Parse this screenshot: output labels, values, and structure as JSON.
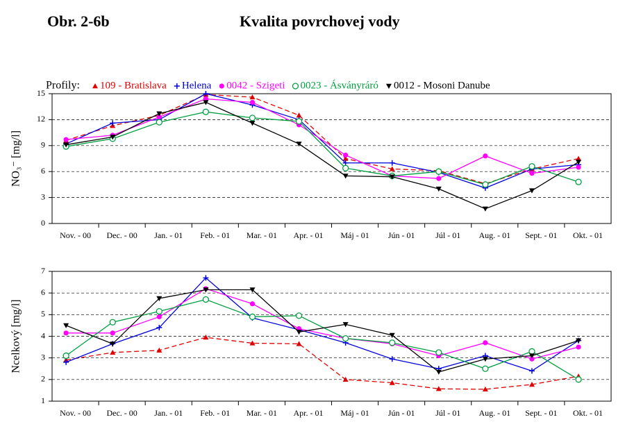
{
  "header": {
    "label": "Obr. 2-6b",
    "title": "Kvalita povrchovej vody"
  },
  "legend_label": "Profily:",
  "chart_data": [
    {
      "type": "line",
      "ylabel": "NO₃⁻ [mg/l]",
      "categories": [
        "Nov. - 00",
        "Dec. - 00",
        "Jan. - 01",
        "Feb. - 01",
        "Mar. - 01",
        "Apr. - 01",
        "Máj - 01",
        "Jún - 01",
        "Júl - 01",
        "Aug. - 01",
        "Sept. - 01",
        "Okt. - 01"
      ],
      "ylim": [
        0,
        15
      ],
      "yticks": [
        0,
        3,
        6,
        9,
        12,
        15
      ],
      "grid": true,
      "series": [
        {
          "name": "109 - Bratislava",
          "color": "#e00000",
          "marker": "triangle-up",
          "dashed": true,
          "values": [
            9.6,
            11.3,
            12.5,
            14.9,
            14.6,
            12.5,
            7.5,
            6.3,
            6.1,
            4.6,
            6.3,
            7.5
          ]
        },
        {
          "name": "Helena",
          "color": "#0000e0",
          "marker": "plus",
          "dashed": false,
          "values": [
            9.2,
            11.6,
            12.0,
            15.0,
            13.7,
            12.0,
            7.0,
            7.0,
            5.9,
            4.1,
            6.3,
            6.8
          ]
        },
        {
          "name": "0042 - Szigeti",
          "color": "#ff00ff",
          "marker": "circle-filled",
          "dashed": false,
          "values": [
            9.7,
            10.2,
            12.3,
            14.4,
            14.0,
            11.4,
            7.9,
            5.5,
            5.2,
            7.8,
            5.8,
            6.5
          ]
        },
        {
          "name": "0023 - Ásványráró",
          "color": "#00a040",
          "marker": "circle-open",
          "dashed": false,
          "values": [
            8.9,
            9.8,
            11.7,
            12.9,
            12.2,
            11.8,
            6.4,
            5.5,
            6.0,
            4.5,
            6.6,
            4.8
          ]
        },
        {
          "name": "0012 - Mosoni Danube",
          "color": "#000000",
          "marker": "triangle-down",
          "dashed": false,
          "values": [
            9.1,
            10.0,
            12.7,
            14.0,
            11.6,
            9.2,
            5.5,
            5.4,
            4.0,
            1.7,
            3.8,
            7.1
          ]
        }
      ]
    },
    {
      "type": "line",
      "ylabel": "Ncelkový [mg/l]",
      "categories": [
        "Nov. - 00",
        "Dec. - 00",
        "Jan. - 01",
        "Feb. - 01",
        "Mar. - 01",
        "Apr. - 01",
        "Máj - 01",
        "Jún - 01",
        "Júl - 01",
        "Aug. - 01",
        "Sept. - 01",
        "Okt. - 01"
      ],
      "ylim": [
        1,
        7
      ],
      "yticks": [
        1,
        2,
        3,
        4,
        5,
        6,
        7
      ],
      "grid": true,
      "series": [
        {
          "color": "#e00000",
          "marker": "triangle-up",
          "dashed": true,
          "values": [
            2.9,
            3.25,
            3.35,
            3.95,
            3.68,
            3.65,
            2.0,
            1.85,
            1.57,
            1.55,
            1.77,
            2.15
          ]
        },
        {
          "color": "#0000e0",
          "marker": "plus",
          "dashed": false,
          "values": [
            2.8,
            3.65,
            4.4,
            6.7,
            4.85,
            4.3,
            3.7,
            2.95,
            2.5,
            3.1,
            2.4,
            3.8
          ]
        },
        {
          "color": "#ff00ff",
          "marker": "circle-filled",
          "dashed": false,
          "values": [
            4.15,
            4.15,
            4.9,
            6.2,
            5.5,
            4.35,
            3.9,
            3.65,
            3.1,
            3.7,
            2.95,
            3.5
          ]
        },
        {
          "color": "#00a040",
          "marker": "circle-open",
          "dashed": false,
          "values": [
            3.1,
            4.65,
            5.15,
            5.7,
            4.9,
            4.95,
            3.9,
            3.7,
            3.25,
            2.5,
            3.3,
            2.0
          ]
        },
        {
          "color": "#000000",
          "marker": "triangle-down",
          "dashed": false,
          "values": [
            4.5,
            3.65,
            5.75,
            6.15,
            6.15,
            4.2,
            4.55,
            4.05,
            2.35,
            2.95,
            3.1,
            3.8
          ]
        }
      ]
    }
  ]
}
